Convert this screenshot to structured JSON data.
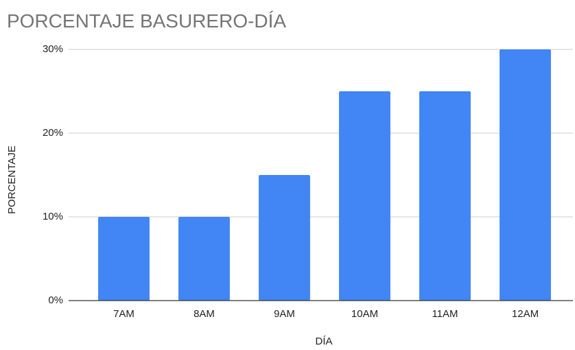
{
  "chart_data": {
    "type": "bar",
    "title": "PORCENTAJE BASURERO-DÍA",
    "x_label": "DÍA",
    "y_label": "PORCENTAJE",
    "categories": [
      "7AM",
      "8AM",
      "9AM",
      "10AM",
      "11AM",
      "12AM"
    ],
    "values": [
      10,
      10,
      15,
      25,
      25,
      30
    ],
    "color": "#4285f4",
    "ylim": [
      0,
      30
    ],
    "yticks": [
      {
        "value": 0,
        "label": "0%"
      },
      {
        "value": 10,
        "label": "10%"
      },
      {
        "value": 20,
        "label": "20%"
      },
      {
        "value": 30,
        "label": "30%"
      }
    ],
    "grid": true
  }
}
